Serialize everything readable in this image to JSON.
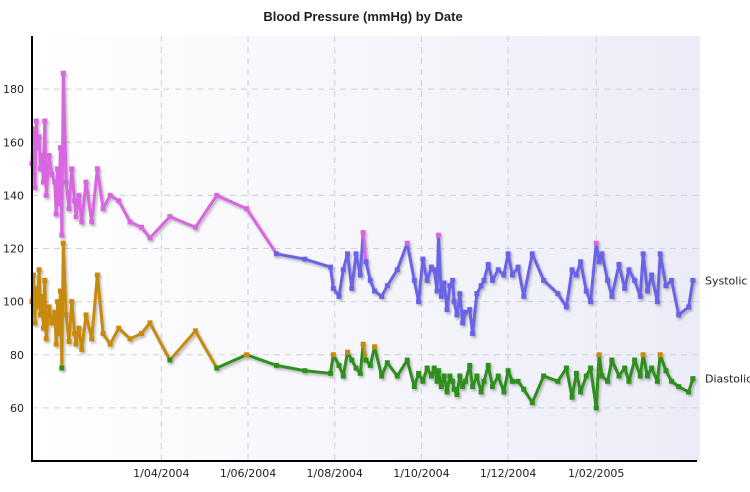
{
  "chart_data": {
    "type": "line",
    "title": "Blood Pressure (mmHg) by Date",
    "xlabel": "",
    "ylabel": "",
    "x_type": "date",
    "xlim": [
      "2004-01-01",
      "2005-04-15"
    ],
    "ylim": [
      40,
      200
    ],
    "y_ticks": [
      60,
      80,
      100,
      120,
      140,
      160,
      180
    ],
    "x_ticks": [
      {
        "date": "2004-04-01",
        "label": "1/04/2004"
      },
      {
        "date": "2004-06-01",
        "label": "1/06/2004"
      },
      {
        "date": "2004-08-01",
        "label": "1/08/2004"
      },
      {
        "date": "2004-10-01",
        "label": "1/10/2004"
      },
      {
        "date": "2004-12-01",
        "label": "1/12/2004"
      },
      {
        "date": "2005-02-01",
        "label": "1/02/2005"
      }
    ],
    "grid": true,
    "legend": "inline labels at line ends (right)",
    "colors": {
      "systolic_high": "#d866e0",
      "systolic_normal": "#6a63e6",
      "diastolic_high": "#c88a10",
      "diastolic_normal": "#2e8f1e",
      "axis": "#000000",
      "grid": "#d0d0d8",
      "plot_bg_left": "#ffffff",
      "plot_bg_right": "#ececf8"
    },
    "series": [
      {
        "name": "Systolic",
        "x": [
          "2004-01-01",
          "2004-01-02",
          "2004-01-03",
          "2004-01-04",
          "2004-01-05",
          "2004-01-06",
          "2004-01-07",
          "2004-01-08",
          "2004-01-09",
          "2004-01-10",
          "2004-01-11",
          "2004-01-13",
          "2004-01-15",
          "2004-01-17",
          "2004-01-18",
          "2004-01-19",
          "2004-01-20",
          "2004-01-21",
          "2004-01-22",
          "2004-01-23",
          "2004-01-25",
          "2004-01-27",
          "2004-01-29",
          "2004-01-31",
          "2004-02-01",
          "2004-02-03",
          "2004-02-05",
          "2004-02-08",
          "2004-02-12",
          "2004-02-16",
          "2004-02-20",
          "2004-02-25",
          "2004-03-02",
          "2004-03-10",
          "2004-03-18",
          "2004-03-24",
          "2004-04-07",
          "2004-04-25",
          "2004-05-10",
          "2004-05-31",
          "2004-06-21",
          "2004-07-11",
          "2004-07-29",
          "2004-07-31",
          "2004-08-04",
          "2004-08-07",
          "2004-08-10",
          "2004-08-13",
          "2004-08-16",
          "2004-08-19",
          "2004-08-21",
          "2004-08-23",
          "2004-08-26",
          "2004-08-29",
          "2004-09-03",
          "2004-09-07",
          "2004-09-14",
          "2004-09-21",
          "2004-09-26",
          "2004-09-29",
          "2004-10-02",
          "2004-10-05",
          "2004-10-08",
          "2004-10-10",
          "2004-10-12",
          "2004-10-13",
          "2004-10-15",
          "2004-10-17",
          "2004-10-19",
          "2004-10-21",
          "2004-10-23",
          "2004-10-24",
          "2004-10-26",
          "2004-10-28",
          "2004-10-30",
          "2004-11-01",
          "2004-11-04",
          "2004-11-06",
          "2004-11-09",
          "2004-11-12",
          "2004-11-14",
          "2004-11-17",
          "2004-11-20",
          "2004-11-24",
          "2004-11-28",
          "2004-12-01",
          "2004-12-04",
          "2004-12-08",
          "2004-12-12",
          "2004-12-18",
          "2004-12-26",
          "2005-01-05",
          "2005-01-11",
          "2005-01-15",
          "2005-01-18",
          "2005-01-21",
          "2005-01-25",
          "2005-01-28",
          "2005-02-01",
          "2005-02-03",
          "2005-02-05",
          "2005-02-09",
          "2005-02-12",
          "2005-02-17",
          "2005-02-21",
          "2005-02-24",
          "2005-02-28",
          "2005-03-04",
          "2005-03-06",
          "2005-03-09",
          "2005-03-12",
          "2005-03-16",
          "2005-03-18",
          "2005-03-22",
          "2005-03-26",
          "2005-03-31",
          "2005-04-07",
          "2005-04-10"
        ],
        "y": [
          152,
          165,
          143,
          168,
          158,
          162,
          150,
          155,
          145,
          168,
          140,
          155,
          148,
          145,
          133,
          150,
          137,
          158,
          125,
          186,
          145,
          135,
          150,
          138,
          132,
          140,
          130,
          145,
          130,
          150,
          135,
          140,
          138,
          130,
          128,
          124,
          132,
          128,
          140,
          135,
          118,
          116,
          113,
          105,
          102,
          112,
          118,
          105,
          118,
          110,
          126,
          115,
          108,
          104,
          102,
          106,
          112,
          122,
          108,
          100,
          116,
          108,
          113,
          112,
          104,
          125,
          102,
          107,
          97,
          106,
          108,
          100,
          95,
          103,
          92,
          96,
          97,
          88,
          103,
          106,
          108,
          114,
          108,
          112,
          110,
          118,
          110,
          113,
          102,
          118,
          108,
          103,
          98,
          112,
          110,
          115,
          104,
          100,
          122,
          115,
          118,
          108,
          102,
          114,
          105,
          112,
          108,
          102,
          118,
          104,
          110,
          100,
          118,
          106,
          108,
          95,
          98,
          108
        ]
      },
      {
        "name": "Diastolic",
        "x": [
          "2004-01-01",
          "2004-01-02",
          "2004-01-03",
          "2004-01-04",
          "2004-01-05",
          "2004-01-06",
          "2004-01-07",
          "2004-01-08",
          "2004-01-09",
          "2004-01-10",
          "2004-01-11",
          "2004-01-13",
          "2004-01-15",
          "2004-01-17",
          "2004-01-18",
          "2004-01-19",
          "2004-01-20",
          "2004-01-21",
          "2004-01-22",
          "2004-01-23",
          "2004-01-25",
          "2004-01-27",
          "2004-01-29",
          "2004-01-31",
          "2004-02-01",
          "2004-02-03",
          "2004-02-05",
          "2004-02-08",
          "2004-02-12",
          "2004-02-16",
          "2004-02-20",
          "2004-02-25",
          "2004-03-02",
          "2004-03-10",
          "2004-03-18",
          "2004-03-24",
          "2004-04-07",
          "2004-04-25",
          "2004-05-10",
          "2004-05-31",
          "2004-06-21",
          "2004-07-11",
          "2004-07-29",
          "2004-07-31",
          "2004-08-04",
          "2004-08-07",
          "2004-08-10",
          "2004-08-13",
          "2004-08-16",
          "2004-08-19",
          "2004-08-21",
          "2004-08-23",
          "2004-08-26",
          "2004-08-29",
          "2004-09-03",
          "2004-09-07",
          "2004-09-14",
          "2004-09-21",
          "2004-09-26",
          "2004-09-29",
          "2004-10-02",
          "2004-10-05",
          "2004-10-08",
          "2004-10-10",
          "2004-10-12",
          "2004-10-13",
          "2004-10-15",
          "2004-10-17",
          "2004-10-19",
          "2004-10-21",
          "2004-10-23",
          "2004-10-24",
          "2004-10-26",
          "2004-10-28",
          "2004-10-30",
          "2004-11-01",
          "2004-11-04",
          "2004-11-06",
          "2004-11-09",
          "2004-11-12",
          "2004-11-14",
          "2004-11-17",
          "2004-11-20",
          "2004-11-24",
          "2004-11-28",
          "2004-12-01",
          "2004-12-04",
          "2004-12-08",
          "2004-12-12",
          "2004-12-18",
          "2004-12-26",
          "2005-01-05",
          "2005-01-11",
          "2005-01-15",
          "2005-01-18",
          "2005-01-21",
          "2005-01-25",
          "2005-01-28",
          "2005-02-01",
          "2005-02-03",
          "2005-02-05",
          "2005-02-09",
          "2005-02-12",
          "2005-02-17",
          "2005-02-21",
          "2005-02-24",
          "2005-02-28",
          "2005-03-04",
          "2005-03-06",
          "2005-03-09",
          "2005-03-12",
          "2005-03-16",
          "2005-03-18",
          "2005-03-22",
          "2005-03-26",
          "2005-03-31",
          "2005-04-07",
          "2005-04-10"
        ],
        "y": [
          100,
          110,
          92,
          105,
          98,
          112,
          95,
          102,
          90,
          108,
          86,
          98,
          92,
          96,
          84,
          100,
          88,
          104,
          75,
          122,
          95,
          85,
          100,
          88,
          84,
          90,
          82,
          95,
          86,
          110,
          88,
          84,
          90,
          86,
          88,
          92,
          78,
          89,
          75,
          80,
          76,
          74,
          73,
          80,
          76,
          72,
          81,
          78,
          75,
          73,
          84,
          78,
          76,
          83,
          72,
          77,
          72,
          78,
          68,
          73,
          70,
          75,
          72,
          75,
          70,
          74,
          68,
          72,
          66,
          72,
          70,
          67,
          65,
          72,
          68,
          70,
          76,
          68,
          72,
          66,
          70,
          76,
          68,
          72,
          66,
          74,
          70,
          70,
          67,
          62,
          72,
          70,
          75,
          64,
          73,
          66,
          72,
          75,
          60,
          80,
          72,
          70,
          78,
          72,
          75,
          70,
          78,
          72,
          80,
          72,
          75,
          70,
          80,
          74,
          70,
          68,
          66,
          71
        ]
      }
    ]
  }
}
